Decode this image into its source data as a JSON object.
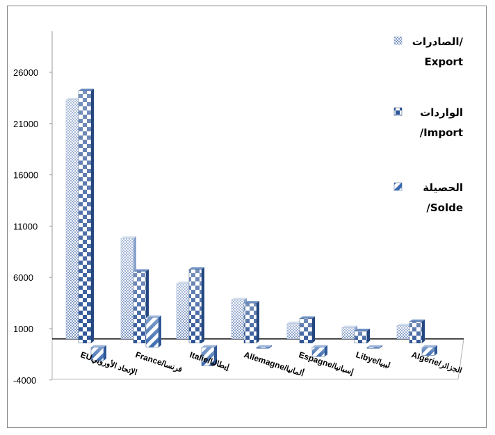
{
  "chart_data": {
    "type": "bar",
    "three_d": true,
    "grid": false,
    "legend_position": "right",
    "ylim": [
      -4000,
      29000
    ],
    "yticks": [
      -4000,
      1000,
      6000,
      11000,
      16000,
      21000,
      26000
    ],
    "ytick_labels": [
      "-4000",
      "1000",
      "6000",
      "11000",
      "16000",
      "21000",
      "26000"
    ],
    "categories": [
      [
        "EU",
        "الإتحاد الأوروبي"
      ],
      [
        "France/",
        "فرنسا"
      ],
      [
        "Italie/",
        "إيطاليا"
      ],
      [
        "Allemagne/",
        "ألمانيا"
      ],
      [
        "Espagne/",
        "إسبانيا"
      ],
      [
        "Libye/",
        "ليبيا"
      ],
      [
        "Algérie/",
        "الجزائر"
      ]
    ],
    "series": [
      {
        "name": [
          "الصادرات/",
          "Export"
        ],
        "color": "#b4c6e2",
        "pattern": "checker-fine",
        "values": [
          23300,
          9800,
          5400,
          3800,
          1500,
          1100,
          1300
        ]
      },
      {
        "name": [
          "الواردات",
          "/Import"
        ],
        "color": "#2e5597",
        "pattern": "checker-large",
        "values": [
          24600,
          7000,
          7200,
          3900,
          2400,
          1200,
          2100
        ]
      },
      {
        "name": [
          "الحصيلة",
          "/Solde"
        ],
        "color": "#3b6bb0",
        "pattern": "diagonal",
        "values": [
          -1300,
          2900,
          -1800,
          -100,
          -900,
          -100,
          -800
        ]
      }
    ]
  }
}
